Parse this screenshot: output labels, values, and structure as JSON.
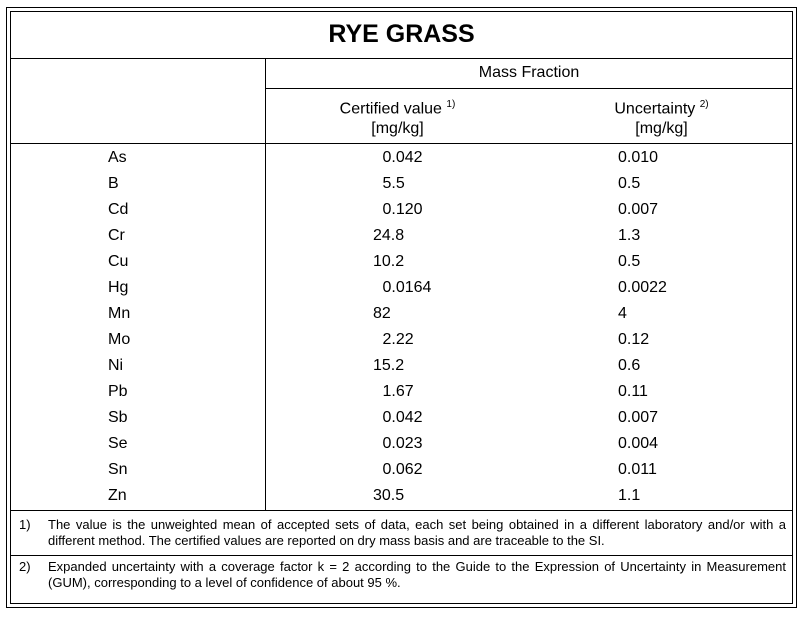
{
  "title": "RYE GRASS",
  "header": {
    "group": "Mass Fraction",
    "columns": [
      {
        "label": "Certified value",
        "note": "1)",
        "unit": "[mg/kg]"
      },
      {
        "label": "Uncertainty",
        "note": "2)",
        "unit": "[mg/kg]"
      }
    ]
  },
  "table": {
    "rows": [
      [
        "As",
        "0.042",
        "0.010"
      ],
      [
        "B",
        "5.5",
        "0.5"
      ],
      [
        "Cd",
        "0.120",
        "0.007"
      ],
      [
        "Cr",
        "24.8",
        "1.3"
      ],
      [
        "Cu",
        "10.2",
        "0.5"
      ],
      [
        "Hg",
        "0.0164",
        "0.0022"
      ],
      [
        "Mn",
        "82",
        "4"
      ],
      [
        "Mo",
        "2.22",
        "0.12"
      ],
      [
        "Ni",
        "15.2",
        "0.6"
      ],
      [
        "Pb",
        "1.67",
        "0.11"
      ],
      [
        "Sb",
        "0.042",
        "0.007"
      ],
      [
        "Se",
        "0.023",
        "0.004"
      ],
      [
        "Sn",
        "0.062",
        "0.011"
      ],
      [
        "Zn",
        "30.5",
        "1.1"
      ]
    ]
  },
  "footnotes": [
    {
      "marker": "1)",
      "text": "The value is the unweighted mean of accepted sets of data, each set being obtained in a different laboratory and/or with a different method. The certified values are reported on dry mass basis and are traceable to the SI."
    },
    {
      "marker": "2)",
      "text": "Expanded uncertainty with a coverage factor k = 2 according to the Guide to the Expression of Uncertainty in Measurement (GUM), corresponding to a level of confidence of about 95 %."
    }
  ]
}
